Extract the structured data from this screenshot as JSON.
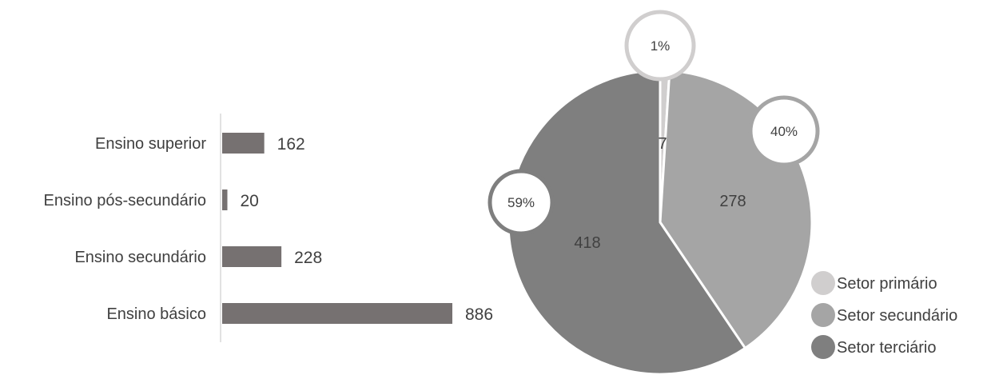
{
  "chart_data": [
    {
      "type": "bar",
      "orientation": "horizontal",
      "categories": [
        "Ensino superior",
        "Ensino pós-secundário",
        "Ensino secundário",
        "Ensino básico"
      ],
      "values": [
        162,
        20,
        228,
        886
      ],
      "value_labels": [
        "162",
        "20",
        "228",
        "886"
      ],
      "bar_color": "#767171",
      "axis_color": "#d9d9d9",
      "grid": false
    },
    {
      "type": "pie",
      "categories": [
        "Setor primário",
        "Setor secundário",
        "Setor terciário"
      ],
      "values": [
        7,
        278,
        418
      ],
      "value_labels": [
        "7",
        "278",
        "418"
      ],
      "percent_labels": [
        "1%",
        "40%",
        "59%"
      ],
      "colors": [
        "#d0cece",
        "#a5a5a5",
        "#7f7f7f"
      ],
      "legend_position": "bottom-right"
    }
  ]
}
